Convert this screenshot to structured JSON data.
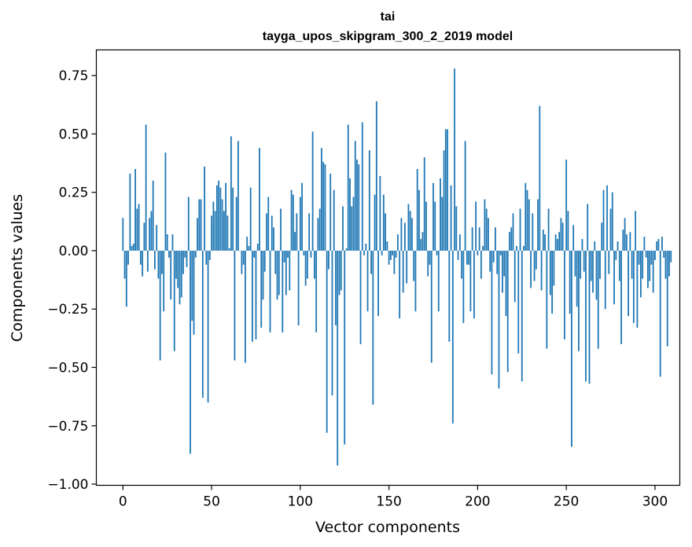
{
  "chart_data": {
    "type": "bar",
    "title": "tai",
    "subtitle": "tayga_upos_skipgram_300_2_2019 model",
    "xlabel": "Vector components",
    "ylabel": "Components values",
    "xlim": [
      -15,
      314
    ],
    "ylim": [
      -1.005,
      0.86
    ],
    "xticks": [
      0,
      50,
      100,
      150,
      200,
      250,
      300
    ],
    "xtick_labels": [
      "0",
      "50",
      "100",
      "150",
      "200",
      "250",
      "300"
    ],
    "yticks": [
      0.75,
      0.5,
      0.25,
      0.0,
      -0.25,
      -0.5,
      -0.75,
      -1.0
    ],
    "ytick_labels": [
      "0.75",
      "0.50",
      "0.25",
      "0.00",
      "−0.25",
      "−0.50",
      "−0.75",
      "−1.00"
    ],
    "bar_color": "#1f77b4",
    "grid": false,
    "values": [
      0.14,
      -0.12,
      -0.24,
      -0.06,
      0.33,
      0.02,
      0.03,
      0.35,
      0.18,
      0.2,
      -0.06,
      -0.11,
      0.12,
      0.54,
      -0.09,
      0.14,
      0.17,
      0.3,
      -0.08,
      0.11,
      -0.12,
      -0.47,
      -0.1,
      -0.26,
      0.42,
      0.07,
      -0.03,
      -0.21,
      0.07,
      -0.43,
      -0.12,
      -0.16,
      -0.23,
      -0.2,
      -0.1,
      -0.03,
      -0.07,
      0.23,
      -0.87,
      -0.3,
      -0.36,
      -0.03,
      0.14,
      0.22,
      0.22,
      -0.63,
      0.36,
      -0.06,
      -0.65,
      -0.04,
      0.15,
      0.21,
      0.17,
      0.28,
      0.3,
      0.27,
      0.22,
      0.17,
      0.29,
      0.15,
      0.01,
      0.49,
      0.27,
      -0.47,
      0.23,
      0.47,
      0.0,
      -0.1,
      -0.06,
      -0.48,
      0.06,
      0.02,
      0.27,
      -0.39,
      -0.03,
      -0.38,
      0.03,
      0.44,
      -0.33,
      -0.21,
      -0.09,
      0.16,
      0.23,
      -0.35,
      0.15,
      0.1,
      -0.1,
      -0.21,
      -0.19,
      0.18,
      -0.35,
      -0.05,
      -0.19,
      -0.03,
      -0.17,
      0.26,
      0.24,
      0.08,
      0.16,
      -0.32,
      0.23,
      0.29,
      -0.02,
      -0.15,
      -0.12,
      0.16,
      -0.03,
      0.51,
      -0.12,
      -0.35,
      0.14,
      0.18,
      0.44,
      0.38,
      0.37,
      -0.78,
      -0.08,
      0.33,
      -0.62,
      0.26,
      -0.32,
      -0.92,
      -0.19,
      -0.17,
      0.19,
      -0.83,
      0.01,
      0.54,
      0.31,
      0.19,
      0.23,
      0.47,
      0.39,
      0.37,
      -0.4,
      0.55,
      -0.02,
      0.03,
      -0.26,
      0.43,
      -0.1,
      -0.66,
      0.24,
      0.64,
      -0.28,
      0.32,
      -0.02,
      0.24,
      0.16,
      0.04,
      -0.06,
      -0.04,
      -0.02,
      -0.1,
      -0.03,
      0.07,
      -0.29,
      0.14,
      -0.18,
      0.12,
      -0.14,
      0.2,
      0.17,
      0.14,
      -0.13,
      -0.26,
      0.35,
      0.26,
      0.05,
      0.08,
      0.4,
      0.21,
      -0.11,
      -0.06,
      -0.48,
      0.29,
      0.21,
      -0.02,
      -0.26,
      0.31,
      0.23,
      0.43,
      0.52,
      0.52,
      -0.39,
      0.28,
      -0.74,
      0.78,
      0.19,
      -0.04,
      0.07,
      -0.12,
      -0.31,
      0.47,
      -0.06,
      -0.06,
      -0.26,
      0.1,
      -0.29,
      0.21,
      -0.02,
      0.1,
      -0.12,
      0.02,
      0.22,
      0.18,
      0.14,
      -0.09,
      -0.53,
      -0.05,
      0.1,
      -0.1,
      -0.59,
      -0.02,
      -0.18,
      -0.11,
      -0.28,
      -0.52,
      0.08,
      0.1,
      0.16,
      -0.22,
      0.02,
      -0.44,
      0.18,
      -0.56,
      0.02,
      0.29,
      0.26,
      0.22,
      -0.16,
      0.16,
      -0.13,
      -0.08,
      0.22,
      0.62,
      -0.17,
      0.09,
      0.07,
      -0.42,
      0.18,
      -0.19,
      -0.27,
      -0.15,
      0.07,
      0.05,
      0.08,
      0.14,
      0.12,
      -0.38,
      0.39,
      0.17,
      -0.27,
      -0.84,
      0.11,
      -0.11,
      -0.24,
      -0.43,
      -0.12,
      0.05,
      -0.09,
      -0.56,
      0.2,
      -0.57,
      -0.13,
      -0.18,
      0.04,
      -0.21,
      -0.42,
      -0.12,
      0.12,
      0.26,
      -0.25,
      0.28,
      -0.1,
      0.18,
      0.25,
      -0.23,
      -0.04,
      0.04,
      -0.13,
      -0.4,
      0.09,
      0.14,
      0.07,
      -0.28,
      0.08,
      -0.12,
      -0.31,
      0.17,
      -0.33,
      -0.06,
      -0.2,
      -0.12,
      0.06,
      -0.03,
      -0.16,
      -0.13,
      -0.06,
      -0.18,
      -0.04,
      0.04,
      0.05,
      -0.54,
      0.06,
      -0.03,
      -0.12,
      -0.41,
      -0.11,
      -0.05
    ]
  }
}
